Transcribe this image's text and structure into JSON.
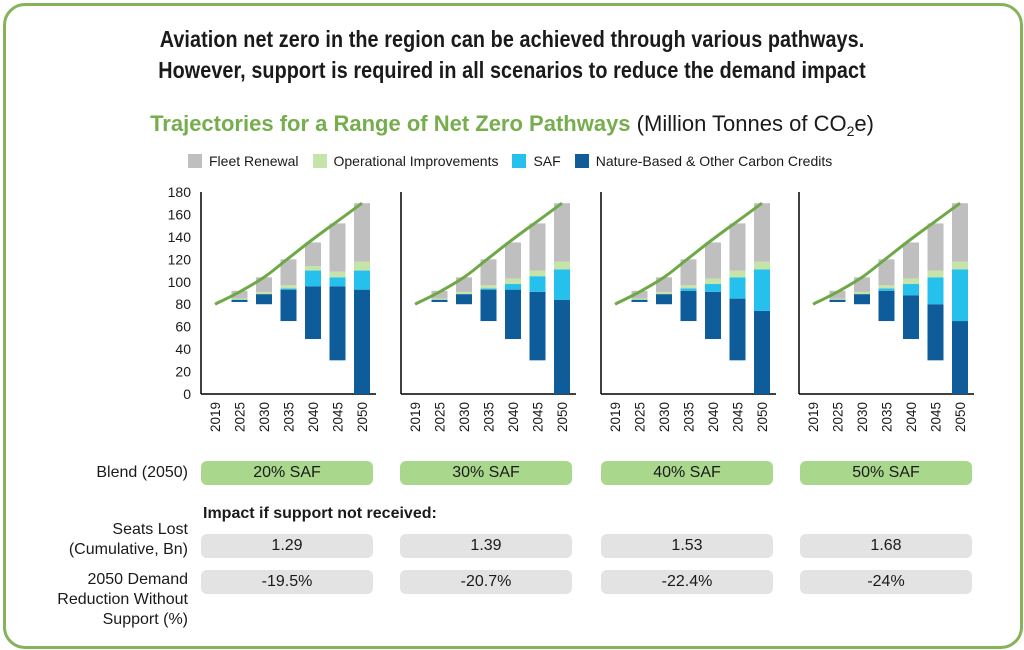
{
  "headline": {
    "line1": "Aviation net zero in the region can be achieved through various pathways.",
    "line2": "However, support is required in all scenarios to reduce the demand impact"
  },
  "subtitle": {
    "title_bold": "Trajectories for a Range of Net Zero Pathways",
    "unit_prefix": "(Million Tonnes of CO",
    "unit_sub": "2",
    "unit_suffix": "e)"
  },
  "legend": [
    {
      "label": "Fleet Renewal",
      "color": "#bfbfbf"
    },
    {
      "label": "Operational Improvements",
      "color": "#c6e3a9"
    },
    {
      "label": "SAF",
      "color": "#25c0ec"
    },
    {
      "label": "Nature-Based & Other Carbon Credits",
      "color": "#0e5c9a"
    }
  ],
  "colors": {
    "line": "#6fa846",
    "axis": "#000000",
    "frame": "#84b35a"
  },
  "rows": {
    "blend_label": "Blend (2050)",
    "impact_label": "Impact if support not received:",
    "seats_label_1": "Seats Lost",
    "seats_label_2": "(Cumulative, Bn)",
    "demand_label_1": "2050 Demand",
    "demand_label_2": "Reduction Without",
    "demand_label_3": "Support (%)"
  },
  "scenarios": [
    {
      "blend": "20% SAF",
      "seats_lost": "1.29",
      "demand_reduction": "-19.5%"
    },
    {
      "blend": "30% SAF",
      "seats_lost": "1.39",
      "demand_reduction": "-20.7%"
    },
    {
      "blend": "40% SAF",
      "seats_lost": "1.53",
      "demand_reduction": "-22.4%"
    },
    {
      "blend": "50% SAF",
      "seats_lost": "1.68",
      "demand_reduction": "-24%"
    }
  ],
  "chart_data": [
    {
      "type": "bar",
      "categories": [
        "2019",
        "2025",
        "2030",
        "2035",
        "2040",
        "2045",
        "2050"
      ],
      "ylim": [
        0,
        180
      ],
      "yticks": [
        0,
        20,
        40,
        60,
        80,
        100,
        120,
        140,
        160,
        180
      ],
      "line_series": [
        80,
        91,
        104,
        121,
        138,
        154,
        170
      ],
      "bars": [
        null,
        {
          "credits": [
            82,
            84
          ],
          "saf": [
            84,
            84
          ],
          "ops": [
            84,
            85
          ],
          "fleet": [
            85,
            92
          ]
        },
        {
          "credits": [
            80,
            89
          ],
          "saf": [
            89,
            89
          ],
          "ops": [
            89,
            91
          ],
          "fleet": [
            91,
            104
          ]
        },
        {
          "credits": [
            65,
            93
          ],
          "saf": [
            93,
            94
          ],
          "ops": [
            94,
            97
          ],
          "fleet": [
            97,
            120
          ]
        },
        {
          "credits": [
            49,
            96
          ],
          "saf": [
            96,
            110
          ],
          "ops": [
            110,
            114
          ],
          "fleet": [
            114,
            135
          ]
        },
        {
          "credits": [
            30,
            96
          ],
          "saf": [
            96,
            104
          ],
          "ops": [
            104,
            109
          ],
          "fleet": [
            109,
            152
          ]
        },
        {
          "credits": [
            0,
            93
          ],
          "saf": [
            93,
            110
          ],
          "ops": [
            110,
            118
          ],
          "fleet": [
            118,
            170
          ]
        }
      ]
    },
    {
      "type": "bar",
      "categories": [
        "2019",
        "2025",
        "2030",
        "2035",
        "2040",
        "2045",
        "2050"
      ],
      "ylim": [
        0,
        180
      ],
      "yticks": [
        0,
        20,
        40,
        60,
        80,
        100,
        120,
        140,
        160,
        180
      ],
      "line_series": [
        80,
        91,
        104,
        121,
        138,
        154,
        170
      ],
      "bars": [
        null,
        {
          "credits": [
            82,
            84
          ],
          "saf": [
            84,
            84
          ],
          "ops": [
            84,
            85
          ],
          "fleet": [
            85,
            92
          ]
        },
        {
          "credits": [
            80,
            89
          ],
          "saf": [
            89,
            89
          ],
          "ops": [
            89,
            91
          ],
          "fleet": [
            91,
            104
          ]
        },
        {
          "credits": [
            65,
            93
          ],
          "saf": [
            93,
            94
          ],
          "ops": [
            94,
            97
          ],
          "fleet": [
            97,
            120
          ]
        },
        {
          "credits": [
            49,
            93
          ],
          "saf": [
            93,
            98
          ],
          "ops": [
            98,
            103
          ],
          "fleet": [
            103,
            135
          ]
        },
        {
          "credits": [
            30,
            91
          ],
          "saf": [
            91,
            105
          ],
          "ops": [
            105,
            110
          ],
          "fleet": [
            110,
            152
          ]
        },
        {
          "credits": [
            0,
            84
          ],
          "saf": [
            84,
            111
          ],
          "ops": [
            111,
            118
          ],
          "fleet": [
            118,
            170
          ]
        }
      ]
    },
    {
      "type": "bar",
      "categories": [
        "2019",
        "2025",
        "2030",
        "2035",
        "2040",
        "2045",
        "2050"
      ],
      "ylim": [
        0,
        180
      ],
      "yticks": [
        0,
        20,
        40,
        60,
        80,
        100,
        120,
        140,
        160,
        180
      ],
      "line_series": [
        80,
        91,
        104,
        121,
        138,
        154,
        170
      ],
      "bars": [
        null,
        {
          "credits": [
            82,
            84
          ],
          "saf": [
            84,
            84
          ],
          "ops": [
            84,
            85
          ],
          "fleet": [
            85,
            92
          ]
        },
        {
          "credits": [
            80,
            89
          ],
          "saf": [
            89,
            89
          ],
          "ops": [
            89,
            91
          ],
          "fleet": [
            91,
            104
          ]
        },
        {
          "credits": [
            65,
            92
          ],
          "saf": [
            92,
            94
          ],
          "ops": [
            94,
            97
          ],
          "fleet": [
            97,
            120
          ]
        },
        {
          "credits": [
            49,
            91
          ],
          "saf": [
            91,
            98
          ],
          "ops": [
            98,
            103
          ],
          "fleet": [
            103,
            135
          ]
        },
        {
          "credits": [
            30,
            85
          ],
          "saf": [
            85,
            104
          ],
          "ops": [
            104,
            110
          ],
          "fleet": [
            110,
            152
          ]
        },
        {
          "credits": [
            0,
            74
          ],
          "saf": [
            74,
            111
          ],
          "ops": [
            111,
            118
          ],
          "fleet": [
            118,
            170
          ]
        }
      ]
    },
    {
      "type": "bar",
      "categories": [
        "2019",
        "2025",
        "2030",
        "2035",
        "2040",
        "2045",
        "2050"
      ],
      "ylim": [
        0,
        180
      ],
      "yticks": [
        0,
        20,
        40,
        60,
        80,
        100,
        120,
        140,
        160,
        180
      ],
      "line_series": [
        80,
        91,
        104,
        121,
        138,
        154,
        170
      ],
      "bars": [
        null,
        {
          "credits": [
            82,
            84
          ],
          "saf": [
            84,
            84
          ],
          "ops": [
            84,
            85
          ],
          "fleet": [
            85,
            92
          ]
        },
        {
          "credits": [
            80,
            89
          ],
          "saf": [
            89,
            89
          ],
          "ops": [
            89,
            91
          ],
          "fleet": [
            91,
            104
          ]
        },
        {
          "credits": [
            65,
            92
          ],
          "saf": [
            92,
            94
          ],
          "ops": [
            94,
            97
          ],
          "fleet": [
            97,
            120
          ]
        },
        {
          "credits": [
            49,
            88
          ],
          "saf": [
            88,
            98
          ],
          "ops": [
            98,
            103
          ],
          "fleet": [
            103,
            135
          ]
        },
        {
          "credits": [
            30,
            80
          ],
          "saf": [
            80,
            104
          ],
          "ops": [
            104,
            110
          ],
          "fleet": [
            110,
            152
          ]
        },
        {
          "credits": [
            0,
            65
          ],
          "saf": [
            65,
            111
          ],
          "ops": [
            111,
            118
          ],
          "fleet": [
            118,
            170
          ]
        }
      ]
    }
  ]
}
